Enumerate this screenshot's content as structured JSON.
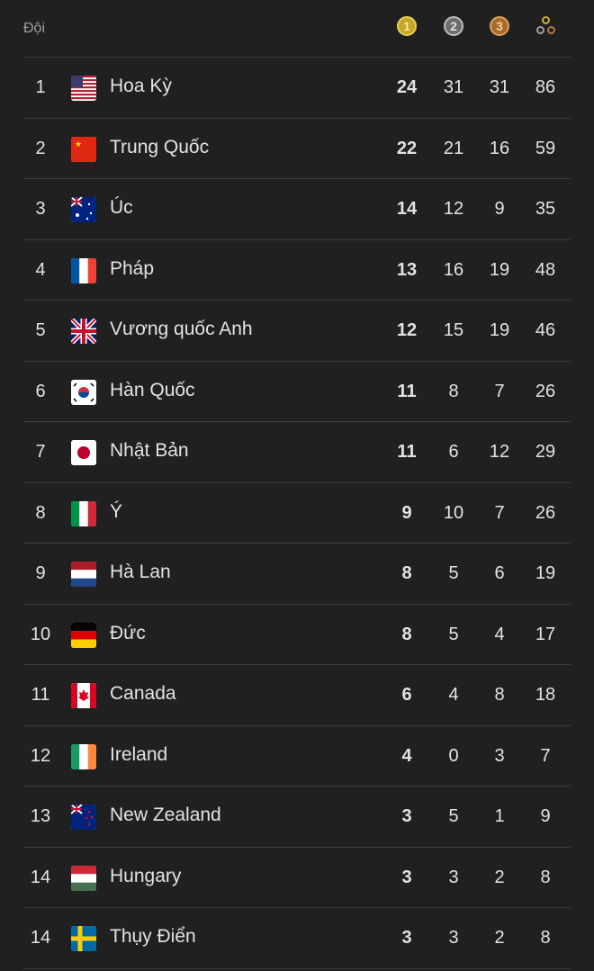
{
  "header": {
    "team_label": "Đội",
    "gold_icon": "1",
    "silver_icon": "2",
    "bronze_icon": "3",
    "total_icon": "total-medals-icon"
  },
  "colors": {
    "background": "#202020",
    "gold": "#c5a626",
    "silver": "#6d6d6d",
    "bronze": "#a86a2c"
  },
  "rows": [
    {
      "rank": "1",
      "flag": "us",
      "name": "Hoa Kỳ",
      "gold": "24",
      "silver": "31",
      "bronze": "31",
      "total": "86"
    },
    {
      "rank": "2",
      "flag": "cn",
      "name": "Trung Quốc",
      "gold": "22",
      "silver": "21",
      "bronze": "16",
      "total": "59"
    },
    {
      "rank": "3",
      "flag": "au",
      "name": "Úc",
      "gold": "14",
      "silver": "12",
      "bronze": "9",
      "total": "35"
    },
    {
      "rank": "4",
      "flag": "fr",
      "name": "Pháp",
      "gold": "13",
      "silver": "16",
      "bronze": "19",
      "total": "48"
    },
    {
      "rank": "5",
      "flag": "gb",
      "name": "Vương quốc Anh",
      "gold": "12",
      "silver": "15",
      "bronze": "19",
      "total": "46"
    },
    {
      "rank": "6",
      "flag": "kr",
      "name": "Hàn Quốc",
      "gold": "11",
      "silver": "8",
      "bronze": "7",
      "total": "26"
    },
    {
      "rank": "7",
      "flag": "jp",
      "name": "Nhật Bản",
      "gold": "11",
      "silver": "6",
      "bronze": "12",
      "total": "29"
    },
    {
      "rank": "8",
      "flag": "it",
      "name": "Ý",
      "gold": "9",
      "silver": "10",
      "bronze": "7",
      "total": "26"
    },
    {
      "rank": "9",
      "flag": "nl",
      "name": "Hà Lan",
      "gold": "8",
      "silver": "5",
      "bronze": "6",
      "total": "19"
    },
    {
      "rank": "10",
      "flag": "de",
      "name": "Đức",
      "gold": "8",
      "silver": "5",
      "bronze": "4",
      "total": "17"
    },
    {
      "rank": "11",
      "flag": "ca",
      "name": "Canada",
      "gold": "6",
      "silver": "4",
      "bronze": "8",
      "total": "18"
    },
    {
      "rank": "12",
      "flag": "ie",
      "name": "Ireland",
      "gold": "4",
      "silver": "0",
      "bronze": "3",
      "total": "7"
    },
    {
      "rank": "13",
      "flag": "nz",
      "name": "New Zealand",
      "gold": "3",
      "silver": "5",
      "bronze": "1",
      "total": "9"
    },
    {
      "rank": "14",
      "flag": "hu",
      "name": "Hungary",
      "gold": "3",
      "silver": "3",
      "bronze": "2",
      "total": "8"
    },
    {
      "rank": "14",
      "flag": "se",
      "name": "Thụy Điển",
      "gold": "3",
      "silver": "3",
      "bronze": "2",
      "total": "8"
    }
  ]
}
